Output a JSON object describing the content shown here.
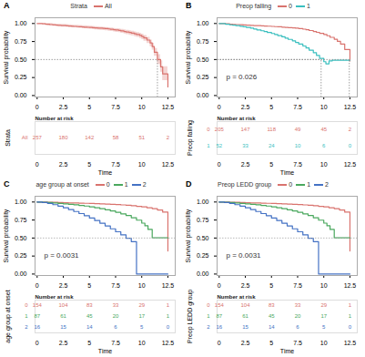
{
  "chart_data": [
    {
      "type": "step",
      "panel_label": "A",
      "legend_title": "Strata",
      "legend": "top",
      "xlabel": "Time",
      "ylabel": "Survival probability",
      "xlim": [
        -0.2,
        13.2
      ],
      "ylim": [
        -0.02,
        1.08
      ],
      "xticks": [
        0,
        2.5,
        5,
        7.5,
        10,
        12.5
      ],
      "yticks": [
        {
          "value": 0,
          "label": "0.00"
        },
        0.25,
        {
          "value": 0.5,
          "label": "0.50"
        },
        0.75,
        {
          "value": 1,
          "label": "1.00"
        }
      ],
      "series": [
        {
          "name": "All",
          "color": "#d9736e",
          "x": [
            0,
            0.2,
            0.5,
            0.8,
            1,
            1.2,
            1.5,
            1.8,
            2,
            2.3,
            2.5,
            2.8,
            3,
            3.3,
            3.5,
            3.8,
            4,
            4.3,
            4.5,
            4.8,
            5,
            5.3,
            5.5,
            5.8,
            6,
            6.3,
            6.5,
            6.8,
            7,
            7.3,
            7.5,
            7.8,
            8,
            8.3,
            8.5,
            8.8,
            9,
            9.3,
            9.5,
            9.8,
            10,
            10.2,
            10.5,
            10.8,
            11,
            11.2,
            11.5,
            11.8,
            12,
            12.5
          ],
          "values": [
            1.0,
            1.0,
            0.995,
            0.99,
            0.99,
            0.985,
            0.98,
            0.978,
            0.975,
            0.972,
            0.97,
            0.967,
            0.965,
            0.962,
            0.96,
            0.957,
            0.955,
            0.952,
            0.95,
            0.947,
            0.945,
            0.942,
            0.94,
            0.937,
            0.935,
            0.932,
            0.929,
            0.925,
            0.92,
            0.915,
            0.91,
            0.905,
            0.898,
            0.89,
            0.883,
            0.875,
            0.867,
            0.857,
            0.847,
            0.835,
            0.82,
            0.8,
            0.77,
            0.73,
            0.68,
            0.6,
            0.5,
            0.4,
            0.3,
            0.12
          ],
          "upper": [
            1.0,
            1.0,
            1.0,
            1.0,
            1.0,
            1.0,
            0.995,
            0.993,
            0.991,
            0.989,
            0.987,
            0.985,
            0.982,
            0.98,
            0.977,
            0.975,
            0.973,
            0.97,
            0.968,
            0.965,
            0.963,
            0.96,
            0.957,
            0.954,
            0.951,
            0.948,
            0.945,
            0.941,
            0.937,
            0.933,
            0.929,
            0.925,
            0.919,
            0.912,
            0.906,
            0.9,
            0.893,
            0.885,
            0.876,
            0.865,
            0.852,
            0.833,
            0.807,
            0.771,
            0.725,
            0.652,
            0.567,
            0.483,
            0.4,
            0.25
          ],
          "lower": [
            1.0,
            0.99,
            0.99,
            0.98,
            0.97,
            0.97,
            0.966,
            0.963,
            0.959,
            0.956,
            0.953,
            0.949,
            0.946,
            0.943,
            0.94,
            0.937,
            0.934,
            0.93,
            0.927,
            0.924,
            0.921,
            0.917,
            0.914,
            0.91,
            0.907,
            0.903,
            0.9,
            0.895,
            0.89,
            0.885,
            0.879,
            0.873,
            0.864,
            0.855,
            0.847,
            0.838,
            0.829,
            0.818,
            0.807,
            0.793,
            0.776,
            0.755,
            0.722,
            0.679,
            0.63,
            0.547,
            0.433,
            0.323,
            0.207,
            0.01
          ]
        }
      ],
      "median_lines": [
        {
          "x": 11.5,
          "y": 0.5
        }
      ],
      "risk_table": {
        "title": "Number at risk",
        "ylabel": "Strata",
        "x": [
          0,
          2.5,
          5,
          7.5,
          10,
          12.5
        ],
        "rows": [
          {
            "name": "All",
            "values": [
              257,
              180,
              142,
              58,
              51,
              2
            ]
          }
        ]
      }
    },
    {
      "type": "step",
      "panel_label": "B",
      "legend_title": "Preop falling",
      "legend": "top",
      "xlabel": "Time",
      "ylabel": "Survival probability",
      "xlim": [
        -0.2,
        13.2
      ],
      "ylim": [
        -0.02,
        1.08
      ],
      "xticks": [
        0,
        2.5,
        5,
        7.5,
        10,
        12.5
      ],
      "yticks": [
        {
          "value": 0,
          "label": "0.00"
        },
        0.25,
        {
          "value": 0.5,
          "label": "0.50"
        },
        0.75,
        {
          "value": 1,
          "label": "1.00"
        }
      ],
      "annotation": "p = 0.026",
      "series": [
        {
          "name": "0",
          "color": "#d9736e",
          "x": [
            0,
            0.3,
            0.6,
            1,
            1.3,
            1.6,
            2,
            2.3,
            2.6,
            3,
            3.3,
            3.6,
            4,
            4.3,
            4.6,
            5,
            5.3,
            5.6,
            6,
            6.3,
            6.6,
            7,
            7.3,
            7.6,
            8,
            8.3,
            8.6,
            9,
            9.3,
            9.6,
            10,
            10.3,
            10.6,
            11,
            11.3,
            11.6,
            12,
            12.5
          ],
          "values": [
            1.0,
            1.0,
            0.995,
            0.99,
            0.988,
            0.985,
            0.983,
            0.98,
            0.978,
            0.975,
            0.972,
            0.97,
            0.968,
            0.965,
            0.963,
            0.96,
            0.957,
            0.954,
            0.95,
            0.946,
            0.943,
            0.94,
            0.936,
            0.93,
            0.922,
            0.913,
            0.903,
            0.89,
            0.878,
            0.864,
            0.848,
            0.83,
            0.808,
            0.782,
            0.752,
            0.715,
            0.64,
            0.48
          ]
        },
        {
          "name": "1",
          "color": "#3abfbf",
          "x": [
            0,
            0.3,
            0.6,
            1,
            1.3,
            1.6,
            2,
            2.3,
            2.6,
            3,
            3.3,
            3.6,
            4,
            4.3,
            4.6,
            5,
            5.3,
            5.6,
            6,
            6.3,
            6.6,
            7,
            7.3,
            7.6,
            8,
            8.3,
            8.6,
            9,
            9.3,
            9.6,
            10,
            10.2,
            10.5,
            10.8,
            11,
            12.5
          ],
          "values": [
            1.0,
            1.0,
            0.99,
            0.982,
            0.977,
            0.97,
            0.962,
            0.954,
            0.946,
            0.935,
            0.924,
            0.912,
            0.9,
            0.888,
            0.876,
            0.862,
            0.848,
            0.832,
            0.815,
            0.798,
            0.78,
            0.76,
            0.738,
            0.715,
            0.688,
            0.66,
            0.63,
            0.595,
            0.558,
            0.517,
            0.47,
            0.44,
            0.48,
            0.49,
            0.49,
            0.49
          ]
        }
      ],
      "median_lines": [
        {
          "x": 12.4375,
          "y": 0.5
        },
        {
          "x": 9.74468085106383,
          "y": 0.5
        }
      ],
      "risk_table": {
        "title": "Number at risk",
        "ylabel": "Preop falling",
        "x": [
          0,
          2.5,
          5,
          7.5,
          10,
          12.5
        ],
        "rows": [
          {
            "name": "0",
            "values": [
              205,
              147,
              118,
              49,
              45,
              2
            ]
          },
          {
            "name": "1",
            "values": [
              52,
              33,
              24,
              10,
              6,
              0
            ]
          }
        ]
      }
    },
    {
      "type": "step",
      "panel_label": "C",
      "legend_title": "age group at onset",
      "legend": "top",
      "xlabel": "Time",
      "ylabel": "Survival probability",
      "xlim": [
        -0.2,
        13.2
      ],
      "ylim": [
        -0.02,
        1.08
      ],
      "xticks": [
        0,
        2.5,
        5,
        7.5,
        10,
        12.5
      ],
      "yticks": [
        {
          "value": 0,
          "label": "0.00"
        },
        0.25,
        {
          "value": 0.5,
          "label": "0.50"
        },
        0.75,
        {
          "value": 1,
          "label": "1.00"
        }
      ],
      "annotation": "p = 0.0031",
      "hlines": [
        0.5
      ],
      "series": [
        {
          "name": "0",
          "color": "#d9736e",
          "x": [
            0,
            0.5,
            1,
            1.5,
            2,
            2.5,
            3,
            3.5,
            4,
            4.5,
            5,
            5.5,
            6,
            6.5,
            7,
            7.5,
            8,
            8.5,
            9,
            9.5,
            10,
            10.5,
            11,
            11.5,
            12,
            12.5
          ],
          "values": [
            1.0,
            1.0,
            0.998,
            0.995,
            0.993,
            0.99,
            0.988,
            0.986,
            0.984,
            0.982,
            0.98,
            0.977,
            0.974,
            0.971,
            0.968,
            0.965,
            0.96,
            0.955,
            0.948,
            0.94,
            0.932,
            0.92,
            0.908,
            0.89,
            0.86,
            0.32
          ]
        },
        {
          "name": "1",
          "color": "#4aa85e",
          "x": [
            0,
            0.5,
            1,
            1.5,
            2,
            2.5,
            3,
            3.5,
            4,
            4.5,
            5,
            5.5,
            6,
            6.5,
            7,
            7.5,
            8,
            8.5,
            9,
            9.5,
            10,
            10.3,
            10.6,
            11,
            12.5
          ],
          "values": [
            1.0,
            0.998,
            0.993,
            0.987,
            0.98,
            0.975,
            0.969,
            0.962,
            0.953,
            0.944,
            0.933,
            0.92,
            0.907,
            0.892,
            0.876,
            0.858,
            0.836,
            0.812,
            0.782,
            0.748,
            0.707,
            0.67,
            0.62,
            0.503,
            0.503
          ]
        },
        {
          "name": "2",
          "color": "#4472c4",
          "x": [
            0,
            0.5,
            1,
            1.5,
            2,
            2.5,
            3,
            3.5,
            4,
            4.5,
            5,
            5.5,
            6,
            6.5,
            7,
            7.5,
            8,
            8.5,
            9,
            9.5,
            10,
            12.5
          ],
          "values": [
            1.0,
            0.993,
            0.98,
            0.963,
            0.942,
            0.92,
            0.895,
            0.868,
            0.84,
            0.81,
            0.778,
            0.743,
            0.706,
            0.668,
            0.628,
            0.587,
            0.544,
            0.498,
            0.45,
            0.0,
            0.0,
            0.0
          ]
        }
      ],
      "risk_table": {
        "title": "Number at risk",
        "ylabel": "age group at onset",
        "x": [
          0,
          2.5,
          5,
          7.5,
          10,
          12.5
        ],
        "rows": [
          {
            "name": "0",
            "values": [
              154,
              104,
              83,
              33,
              29,
              1
            ]
          },
          {
            "name": "1",
            "values": [
              87,
              61,
              45,
              20,
              17,
              1
            ]
          },
          {
            "name": "2",
            "values": [
              16,
              15,
              14,
              6,
              5,
              0
            ]
          }
        ]
      }
    },
    {
      "type": "step",
      "panel_label": "D",
      "legend_title": "Preop LEDD group",
      "legend": "top",
      "xlabel": "Time",
      "ylabel": "Survival probability",
      "xlim": [
        -0.2,
        13.2
      ],
      "ylim": [
        -0.02,
        1.08
      ],
      "xticks": [
        0,
        2.5,
        5,
        7.5,
        10,
        12.5
      ],
      "yticks": [
        {
          "value": 0,
          "label": "0.00"
        },
        0.25,
        {
          "value": 0.5,
          "label": "0.50"
        },
        0.75,
        {
          "value": 1,
          "label": "1.00"
        }
      ],
      "annotation": "p = 0.0031",
      "hlines": [
        0.5
      ],
      "series": [
        {
          "name": "0",
          "color": "#d9736e",
          "x": [
            0,
            0.5,
            1,
            1.5,
            2,
            2.5,
            3,
            3.5,
            4,
            4.5,
            5,
            5.5,
            6,
            6.5,
            7,
            7.5,
            8,
            8.5,
            9,
            9.5,
            10,
            10.5,
            11,
            11.5,
            12,
            12.5
          ],
          "values": [
            1.0,
            1.0,
            0.998,
            0.995,
            0.993,
            0.99,
            0.988,
            0.986,
            0.984,
            0.982,
            0.98,
            0.977,
            0.974,
            0.971,
            0.968,
            0.965,
            0.96,
            0.955,
            0.948,
            0.94,
            0.932,
            0.92,
            0.908,
            0.89,
            0.86,
            0.32
          ]
        },
        {
          "name": "1",
          "color": "#4aa85e",
          "x": [
            0,
            0.5,
            1,
            1.5,
            2,
            2.5,
            3,
            3.5,
            4,
            4.5,
            5,
            5.5,
            6,
            6.5,
            7,
            7.5,
            8,
            8.5,
            9,
            9.5,
            10,
            10.3,
            10.6,
            11,
            12.5
          ],
          "values": [
            1.0,
            0.998,
            0.993,
            0.987,
            0.98,
            0.975,
            0.969,
            0.962,
            0.953,
            0.944,
            0.933,
            0.92,
            0.907,
            0.892,
            0.876,
            0.858,
            0.836,
            0.812,
            0.782,
            0.748,
            0.707,
            0.67,
            0.62,
            0.503,
            0.503
          ]
        },
        {
          "name": "2",
          "color": "#4472c4",
          "x": [
            0,
            0.5,
            1,
            1.5,
            2,
            2.5,
            3,
            3.5,
            4,
            4.5,
            5,
            5.5,
            6,
            6.5,
            7,
            7.5,
            8,
            8.5,
            9,
            9.5,
            10,
            12.5
          ],
          "values": [
            1.0,
            0.993,
            0.98,
            0.963,
            0.942,
            0.92,
            0.895,
            0.868,
            0.84,
            0.81,
            0.778,
            0.743,
            0.706,
            0.668,
            0.628,
            0.587,
            0.544,
            0.498,
            0.45,
            0.0,
            0.0,
            0.0
          ]
        }
      ],
      "risk_table": {
        "title": "Number at risk",
        "ylabel": "Preop LEDD group",
        "x": [
          0,
          2.5,
          5,
          7.5,
          10,
          12.5
        ],
        "rows": [
          {
            "name": "0",
            "values": [
              154,
              104,
              83,
              33,
              29,
              1
            ]
          },
          {
            "name": "1",
            "values": [
              87,
              61,
              45,
              20,
              17,
              1
            ]
          },
          {
            "name": "2",
            "values": [
              16,
              15,
              14,
              6,
              5,
              0
            ]
          }
        ]
      }
    }
  ]
}
